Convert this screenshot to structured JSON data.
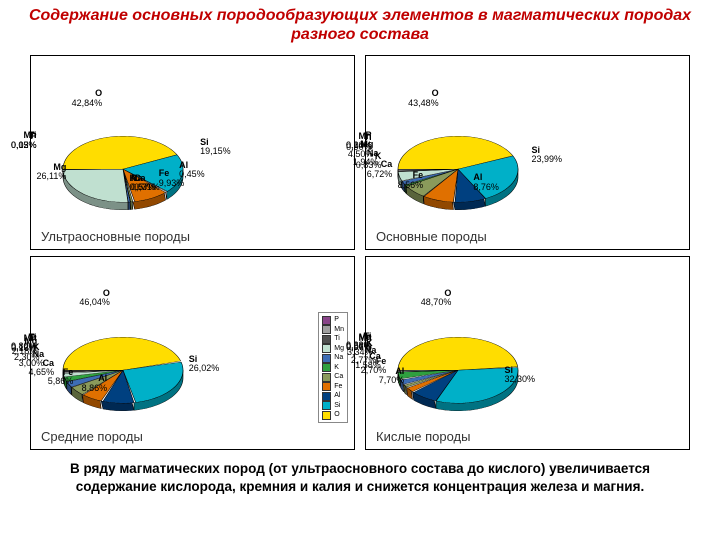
{
  "title": "Содержание основных породообразующих элементов в магматических породах разного состава",
  "footer": "В ряду магматических пород (от ультраосновного состава до кислого) увеличивается содержание кислорода, кремния и калия и снижется концентрация железа и магния.",
  "panels": {
    "ultra": {
      "caption": "Ультраосновные породы",
      "has_legend": false,
      "data": [
        {
          "el": "O",
          "pct": "42,84%",
          "color": "#ffdd00"
        },
        {
          "el": "Si",
          "pct": "19,15%",
          "color": "#00b0c8"
        },
        {
          "el": "Al",
          "pct": "0,45%",
          "color": "#004080"
        },
        {
          "el": "Fe",
          "pct": "9,93%",
          "color": "#e07000"
        },
        {
          "el": "Ca",
          "pct": "0,71%",
          "color": "#8a9a5b"
        },
        {
          "el": "Na",
          "pct": "0,57%",
          "color": "#3d6db5"
        },
        {
          "el": "K",
          "pct": "0,03%",
          "color": "#2fa03f"
        },
        {
          "el": "Mg",
          "pct": "26,11%",
          "color": "#c0e0d0"
        },
        {
          "el": "P",
          "pct": "0,02%",
          "color": "#884488"
        },
        {
          "el": "Mn",
          "pct": "0,15%",
          "color": "#a0a0a0"
        },
        {
          "el": "Ti",
          "pct": "0,03%",
          "color": "#505050"
        }
      ]
    },
    "basic": {
      "caption": "Основные породы",
      "has_legend": false,
      "data": [
        {
          "el": "O",
          "pct": "43,48%",
          "color": "#ffdd00"
        },
        {
          "el": "Si",
          "pct": "23,99%",
          "color": "#00b0c8"
        },
        {
          "el": "Al",
          "pct": "8,76%",
          "color": "#004080"
        },
        {
          "el": "Fe",
          "pct": "8,56%",
          "color": "#e07000"
        },
        {
          "el": "Ca",
          "pct": "6,72%",
          "color": "#8a9a5b"
        },
        {
          "el": "K",
          "pct": "0,83%",
          "color": "#2fa03f"
        },
        {
          "el": "Na",
          "pct": "1,94%",
          "color": "#3d6db5"
        },
        {
          "el": "Mg",
          "pct": "4,50%",
          "color": "#c0e0d0"
        },
        {
          "el": "Ti",
          "pct": "0,90%",
          "color": "#505050"
        },
        {
          "el": "Mn",
          "pct": "0,20%",
          "color": "#a0a0a0"
        },
        {
          "el": "P",
          "pct": "0,14%",
          "color": "#884488"
        }
      ]
    },
    "inter": {
      "caption": "Средние породы",
      "has_legend": true,
      "data": [
        {
          "el": "O",
          "pct": "46,04%",
          "color": "#ffdd00"
        },
        {
          "el": "Si",
          "pct": "26,02%",
          "color": "#00b0c8"
        },
        {
          "el": "Al",
          "pct": "8,86%",
          "color": "#004080"
        },
        {
          "el": "Fe",
          "pct": "5,86%",
          "color": "#e07000"
        },
        {
          "el": "Ca",
          "pct": "4,65%",
          "color": "#8a9a5b"
        },
        {
          "el": "Na",
          "pct": "3,00%",
          "color": "#3d6db5"
        },
        {
          "el": "K",
          "pct": "2,30%",
          "color": "#2fa03f"
        },
        {
          "el": "Mg",
          "pct": "2,18%",
          "color": "#c0e0d0"
        },
        {
          "el": "P",
          "pct": "0,16%",
          "color": "#884488"
        },
        {
          "el": "Mn",
          "pct": "0,12%",
          "color": "#a0a0a0"
        },
        {
          "el": "Ti",
          "pct": "0,80%",
          "color": "#505050"
        }
      ]
    },
    "felsic": {
      "caption": "Кислые породы",
      "has_legend": false,
      "data": [
        {
          "el": "O",
          "pct": "48,70%",
          "color": "#ffdd00"
        },
        {
          "el": "Si",
          "pct": "32,30%",
          "color": "#00b0c8"
        },
        {
          "el": "Al",
          "pct": "7,70%",
          "color": "#004080"
        },
        {
          "el": "Fe",
          "pct": "2,70%",
          "color": "#e07000"
        },
        {
          "el": "Ca",
          "pct": "1,58%",
          "color": "#8a9a5b"
        },
        {
          "el": "Na",
          "pct": "2,77%",
          "color": "#3d6db5"
        },
        {
          "el": "K",
          "pct": "3,34%",
          "color": "#2fa03f"
        },
        {
          "el": "Mn",
          "pct": "0,06%",
          "color": "#a0a0a0"
        },
        {
          "el": "P",
          "pct": "0,07%",
          "color": "#884488"
        },
        {
          "el": "Mg",
          "pct": "0,56%",
          "color": "#c0e0d0"
        },
        {
          "el": "Ti",
          "pct": "0,23%",
          "color": "#505050"
        }
      ]
    }
  },
  "legend_order": [
    "P",
    "Mn",
    "Ti",
    "Mg",
    "Na",
    "K",
    "Ca",
    "Fe",
    "Al",
    "Si",
    "O"
  ],
  "legend_colors": {
    "P": "#884488",
    "Mn": "#a0a0a0",
    "Ti": "#505050",
    "Mg": "#c0e0d0",
    "Na": "#3d6db5",
    "K": "#2fa03f",
    "Ca": "#8a9a5b",
    "Fe": "#e07000",
    "Al": "#004080",
    "Si": "#00b0c8",
    "O": "#ffdd00"
  },
  "chart_style": {
    "type": "pie-3d",
    "radius": 60,
    "tilt": 0.55,
    "stroke": "#000000",
    "stroke_width": 0.6,
    "panel_border": "#000000",
    "background": "#ffffff",
    "title_color": "#c00000",
    "title_fontsize": 16,
    "label_fontsize": 9,
    "caption_fontsize": 13,
    "footer_fontsize": 13.5
  }
}
